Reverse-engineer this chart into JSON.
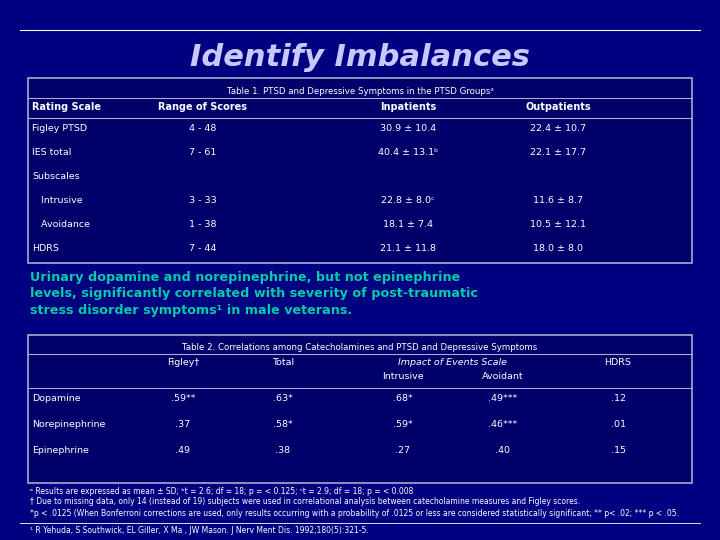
{
  "bg_color": "#000080",
  "title": "Identify Imbalances",
  "title_color": "#c8c8ff",
  "title_fontsize": 22,
  "table1_title": "Table 1. PTSD and Depressive Symptoms in the PTSD Groupsᵃ",
  "table1_headers": [
    "Rating Scale",
    "Range of Scores",
    "Inpatients",
    "Outpatients"
  ],
  "table1_rows": [
    [
      "Figley PTSD",
      "4 - 48",
      "30.9 ± 10.4",
      "22.4 ± 10.7"
    ],
    [
      "IES total",
      "7 - 61",
      "40.4 ± 13.1ᵇ",
      "22.1 ± 17.7"
    ],
    [
      "Subscales",
      "",
      "",
      ""
    ],
    [
      "   Intrusive",
      "3 - 33",
      "22.8 ± 8.0ᶜ",
      "11.6 ± 8.7"
    ],
    [
      "   Avoidance",
      "1 - 38",
      "18.1 ± 7.4",
      "10.5 ± 12.1"
    ],
    [
      "HDRS",
      "7 - 44",
      "21.1 ± 11.8",
      "18.0 ± 8.0"
    ]
  ],
  "highlight_text": "Urinary dopamine and norepinephrine, but not epinephrine\nlevels, significantly correlated with severity of post-traumatic\nstress disorder symptoms¹ in male veterans.",
  "highlight_color": "#00ccaa",
  "table2_title": "Table 2. Correlations among Catecholamines and PTSD and Depressive Symptoms",
  "table2_rows": [
    [
      "Dopamine",
      ".59**",
      ".63*",
      ".68*",
      ".49***",
      ".12"
    ],
    [
      "Norepinephrine",
      ".37",
      ".58*",
      ".59*",
      ".46***",
      ".01"
    ],
    [
      "Epinephrine",
      ".49",
      ".38",
      ".27",
      ".40",
      ".15"
    ]
  ],
  "footnote1": "ᵃ Results are expressed as mean ± SD; ᵇt = 2.6; df = 18; p = < 0.125; ᶜt = 2.9; df = 18; p = < 0.008",
  "footnote2": "† Due to missing data, only 14 (instead of 19) subjects were used in correlational analysis between catecholamine measures and Figley scores.",
  "footnote3": "*p < .0125 (When Bonferroni corrections are used, only results occurring with a probability of .0125 or less are considered statistically significant; ** p< .02; *** p < .05.",
  "reference": "¹ R Yehuda, S Southwick, EL Giller, X Ma , JW Mason. J Nerv Ment Dis. 1992;180(5):321-5.",
  "table_bg": "#00006a",
  "table_border": "#aaaacc",
  "table_text": "#ffffff",
  "line_color": "#aaaacc"
}
